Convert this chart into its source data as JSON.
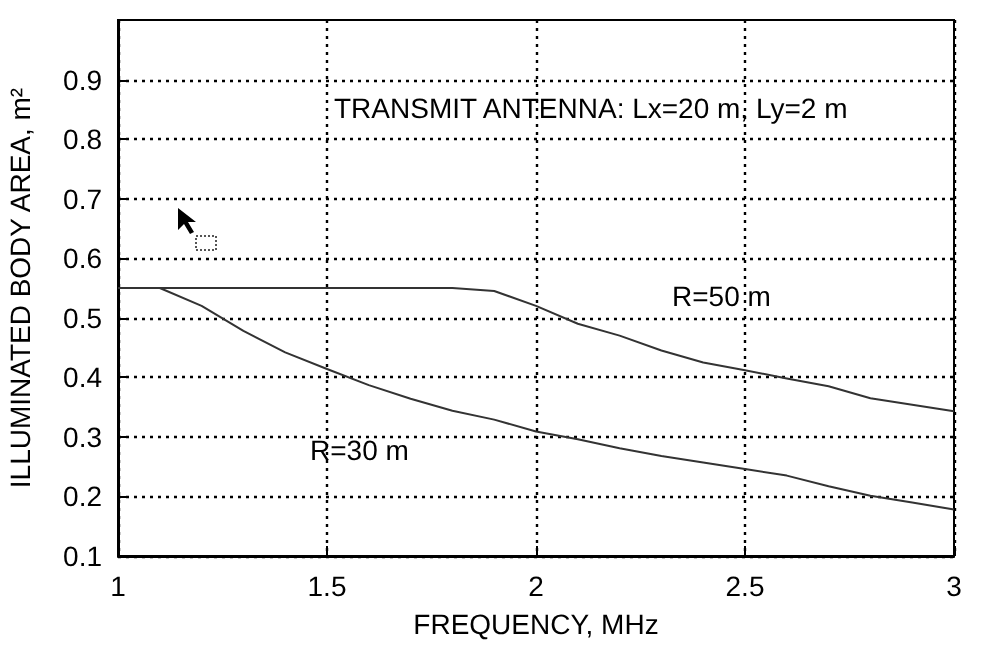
{
  "chart_data": {
    "type": "line",
    "xlabel": "FREQUENCY, MHz",
    "ylabel": "ILLUMINATED BODY AREA, m²",
    "annotations": [
      "TRANSMIT ANTENNA: Lx=20 m, Ly=2 m",
      "R=50 m",
      "R=30 m"
    ],
    "series": [
      {
        "color": "#333333",
        "x": [
          1,
          1.8,
          1.9,
          2.0,
          2.1,
          2.2,
          2.3,
          2.4,
          2.5,
          2.6,
          2.7,
          2.8,
          3.0
        ],
        "values": [
          0.55,
          0.55,
          0.545,
          0.52,
          0.49,
          0.47,
          0.445,
          0.425,
          0.412,
          0.398,
          0.385,
          0.365,
          0.343
        ]
      },
      {
        "color": "#333333",
        "x": [
          1,
          1.1,
          1.2,
          1.3,
          1.4,
          1.5,
          1.6,
          1.7,
          1.8,
          1.9,
          2.0,
          2.1,
          2.2,
          2.3,
          2.4,
          2.5,
          2.6,
          2.7,
          2.8,
          2.9,
          3.0
        ],
        "values": [
          0.55,
          0.55,
          0.52,
          0.478,
          0.442,
          0.414,
          0.387,
          0.364,
          0.344,
          0.329,
          0.309,
          0.296,
          0.281,
          0.268,
          0.257,
          0.246,
          0.235,
          0.217,
          0.201,
          0.19,
          0.178
        ]
      }
    ],
    "xlim": [
      1,
      3
    ],
    "xticks": [
      1,
      1.5,
      2,
      2.5,
      3
    ],
    "ylim": [
      0.1,
      1.0
    ],
    "yticks": [
      0.1,
      0.2,
      0.3,
      0.4,
      0.5,
      0.6,
      0.7,
      0.8,
      0.9
    ],
    "grid": true,
    "marker": "none",
    "line_style": "solid"
  }
}
